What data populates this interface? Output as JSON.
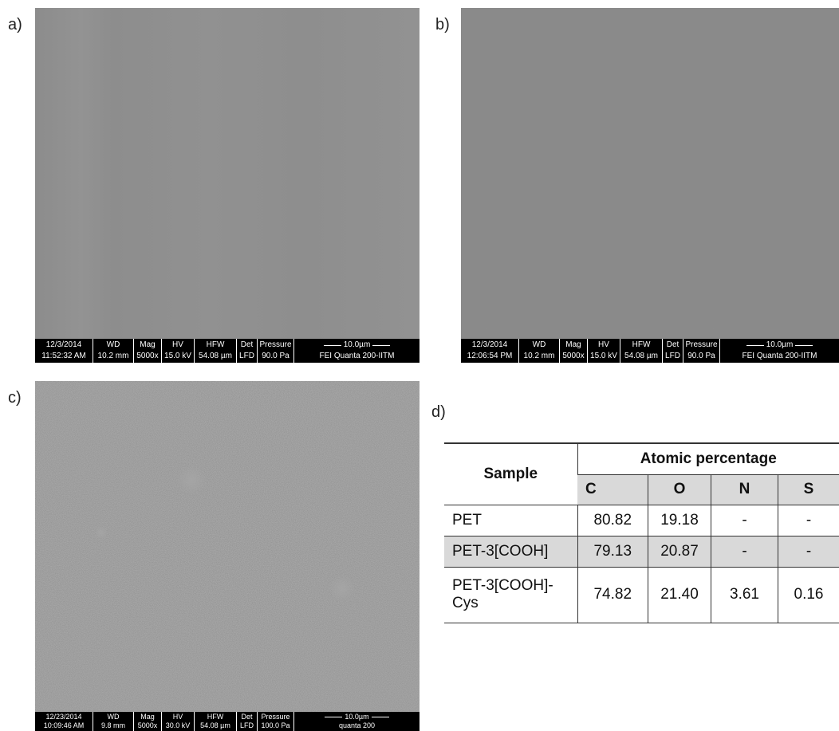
{
  "panels": [
    {
      "label": "a)",
      "info": {
        "date": "12/3/2014",
        "time": "11:52:32 AM",
        "headers": [
          "WD",
          "Mag",
          "HV",
          "HFW",
          "Det",
          "Pressure"
        ],
        "values": [
          "10.2 mm",
          "5000x",
          "15.0 kV",
          "54.08 µm",
          "LFD",
          "90.0 Pa"
        ],
        "scale": "10.0µm",
        "instrument": "FEI Quanta 200-IITM"
      }
    },
    {
      "label": "b)",
      "info": {
        "date": "12/3/2014",
        "time": "12:06:54 PM",
        "headers": [
          "WD",
          "Mag",
          "HV",
          "HFW",
          "Det",
          "Pressure"
        ],
        "values": [
          "10.2 mm",
          "5000x",
          "15.0 kV",
          "54.08 µm",
          "LFD",
          "90.0 Pa"
        ],
        "scale": "10.0µm",
        "instrument": "FEI Quanta 200-IITM"
      }
    },
    {
      "label": "c)",
      "info": {
        "date": "12/23/2014",
        "time": "10:09:46 AM",
        "headers": [
          "WD",
          "Mag",
          "HV",
          "HFW",
          "Det",
          "Pressure"
        ],
        "values": [
          "9.8 mm",
          "5000x",
          "30.0 kV",
          "54.08 µm",
          "LFD",
          "100.0 Pa"
        ],
        "scale": "10.0µm",
        "instrument": "quanta 200"
      }
    }
  ],
  "table": {
    "label": "d)",
    "sample_header": "Sample",
    "group_header": "Atomic percentage",
    "columns": [
      "C",
      "O",
      "N",
      "S"
    ],
    "rows": [
      {
        "sample": "PET",
        "values": [
          80.82,
          19.18,
          "-",
          "-"
        ]
      },
      {
        "sample": "PET-3[COOH]",
        "values": [
          79.13,
          20.87,
          "-",
          "-"
        ]
      },
      {
        "sample": "PET-3[COOH]-Cys",
        "values": [
          74.82,
          21.4,
          3.61,
          0.16
        ]
      }
    ]
  }
}
